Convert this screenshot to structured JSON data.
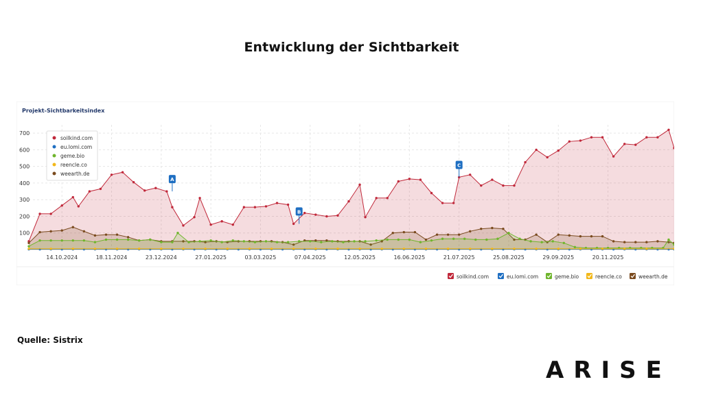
{
  "slide": {
    "title": "Entwicklung der Sichtbarkeit",
    "source": "Quelle: Sistrix",
    "logo": "ARISE"
  },
  "colors": {
    "soilkind": "#c0283a",
    "eulomi": "#1f6fc2",
    "geme": "#6fb52c",
    "reencle": "#f2b81a",
    "weearth": "#7a4a1e"
  },
  "chart_data": {
    "type": "area",
    "title": "Projekt-Sichtbarkeitsindex",
    "xlabel": "",
    "ylabel": "",
    "ylim": [
      0,
      750
    ],
    "yticks": [
      100,
      200,
      300,
      400,
      500,
      600,
      700
    ],
    "ytick_labels": [
      "100",
      "200",
      "300",
      "400",
      "500",
      "600",
      "700"
    ],
    "xticks": [
      6,
      15,
      24,
      33,
      42,
      51,
      60,
      69,
      78,
      87,
      96,
      105
    ],
    "xtick_labels": [
      "14.10.2024",
      "18.11.2024",
      "23.12.2024",
      "27.01.2025",
      "03.03.2025",
      "07.04.2025",
      "12.05.2025",
      "16.06.2025",
      "21.07.2025",
      "25.08.2025",
      "29.09.2025",
      "20.11.2025"
    ],
    "x_count": 112,
    "legend_inset_position": "top-left",
    "legend_bottom_position": "bottom-right",
    "series": [
      {
        "name": "soilkind.com",
        "color_key": "soilkind",
        "points": [
          [
            0,
            50
          ],
          [
            2,
            215
          ],
          [
            4,
            215
          ],
          [
            6,
            265
          ],
          [
            8,
            315
          ],
          [
            9,
            260
          ],
          [
            11,
            350
          ],
          [
            13,
            365
          ],
          [
            15,
            450
          ],
          [
            17,
            465
          ],
          [
            19,
            405
          ],
          [
            21,
            355
          ],
          [
            23,
            370
          ],
          [
            25,
            350
          ],
          [
            26,
            255
          ],
          [
            28,
            145
          ],
          [
            30,
            195
          ],
          [
            31,
            310
          ],
          [
            33,
            150
          ],
          [
            35,
            170
          ],
          [
            37,
            150
          ],
          [
            39,
            255
          ],
          [
            41,
            255
          ],
          [
            43,
            260
          ],
          [
            45,
            280
          ],
          [
            47,
            270
          ],
          [
            48,
            155
          ],
          [
            50,
            220
          ],
          [
            52,
            210
          ],
          [
            54,
            200
          ],
          [
            56,
            205
          ],
          [
            58,
            290
          ],
          [
            60,
            390
          ],
          [
            61,
            195
          ],
          [
            63,
            310
          ],
          [
            65,
            310
          ],
          [
            67,
            410
          ],
          [
            69,
            425
          ],
          [
            71,
            420
          ],
          [
            73,
            340
          ],
          [
            75,
            280
          ],
          [
            77,
            280
          ],
          [
            78,
            435
          ],
          [
            80,
            450
          ],
          [
            82,
            385
          ],
          [
            84,
            420
          ],
          [
            86,
            385
          ],
          [
            88,
            385
          ],
          [
            90,
            525
          ],
          [
            92,
            600
          ],
          [
            94,
            555
          ],
          [
            96,
            595
          ],
          [
            98,
            650
          ],
          [
            100,
            655
          ],
          [
            102,
            675
          ],
          [
            104,
            675
          ],
          [
            106,
            560
          ],
          [
            108,
            635
          ],
          [
            110,
            630
          ],
          [
            112,
            675
          ],
          [
            114,
            675
          ],
          [
            116,
            720
          ],
          [
            117,
            610
          ]
        ]
      },
      {
        "name": "eu.lomi.com",
        "color_key": "eulomi",
        "points": [
          [
            0,
            2
          ],
          [
            2,
            2
          ],
          [
            4,
            2
          ],
          [
            6,
            2
          ],
          [
            8,
            2
          ],
          [
            10,
            2
          ],
          [
            12,
            2
          ],
          [
            14,
            2
          ],
          [
            16,
            2
          ],
          [
            18,
            2
          ],
          [
            20,
            2
          ],
          [
            22,
            2
          ],
          [
            24,
            2
          ],
          [
            26,
            2
          ],
          [
            28,
            2
          ],
          [
            30,
            2
          ],
          [
            32,
            2
          ],
          [
            34,
            2
          ],
          [
            36,
            2
          ],
          [
            38,
            2
          ],
          [
            40,
            2
          ],
          [
            42,
            2
          ],
          [
            44,
            2
          ],
          [
            46,
            2
          ],
          [
            48,
            2
          ],
          [
            50,
            2
          ],
          [
            52,
            2
          ],
          [
            54,
            2
          ],
          [
            56,
            2
          ],
          [
            58,
            2
          ],
          [
            60,
            2
          ],
          [
            62,
            2
          ],
          [
            64,
            2
          ],
          [
            66,
            2
          ],
          [
            68,
            2
          ],
          [
            70,
            2
          ],
          [
            72,
            2
          ],
          [
            74,
            2
          ],
          [
            76,
            2
          ],
          [
            78,
            2
          ],
          [
            80,
            2
          ],
          [
            82,
            2
          ],
          [
            84,
            2
          ],
          [
            86,
            2
          ],
          [
            88,
            2
          ],
          [
            90,
            2
          ],
          [
            92,
            2
          ],
          [
            94,
            2
          ],
          [
            96,
            2
          ],
          [
            98,
            2
          ],
          [
            100,
            2
          ],
          [
            102,
            2
          ],
          [
            104,
            2
          ],
          [
            106,
            2
          ],
          [
            108,
            2
          ],
          [
            110,
            2
          ],
          [
            112,
            2
          ],
          [
            114,
            2
          ],
          [
            116,
            2
          ],
          [
            117,
            2
          ]
        ]
      },
      {
        "name": "geme.bio",
        "color_key": "geme",
        "points": [
          [
            0,
            20
          ],
          [
            2,
            55
          ],
          [
            4,
            55
          ],
          [
            6,
            55
          ],
          [
            8,
            55
          ],
          [
            10,
            55
          ],
          [
            12,
            45
          ],
          [
            14,
            60
          ],
          [
            16,
            60
          ],
          [
            18,
            60
          ],
          [
            20,
            55
          ],
          [
            22,
            60
          ],
          [
            24,
            45
          ],
          [
            26,
            45
          ],
          [
            27,
            100
          ],
          [
            29,
            45
          ],
          [
            31,
            50
          ],
          [
            33,
            55
          ],
          [
            35,
            45
          ],
          [
            37,
            55
          ],
          [
            39,
            50
          ],
          [
            41,
            45
          ],
          [
            43,
            50
          ],
          [
            45,
            45
          ],
          [
            47,
            45
          ],
          [
            49,
            50
          ],
          [
            51,
            50
          ],
          [
            53,
            45
          ],
          [
            55,
            50
          ],
          [
            57,
            45
          ],
          [
            59,
            50
          ],
          [
            61,
            50
          ],
          [
            63,
            55
          ],
          [
            65,
            60
          ],
          [
            67,
            60
          ],
          [
            69,
            60
          ],
          [
            71,
            45
          ],
          [
            73,
            55
          ],
          [
            75,
            65
          ],
          [
            77,
            65
          ],
          [
            79,
            65
          ],
          [
            81,
            60
          ],
          [
            83,
            60
          ],
          [
            85,
            65
          ],
          [
            87,
            100
          ],
          [
            89,
            65
          ],
          [
            91,
            50
          ],
          [
            93,
            45
          ],
          [
            95,
            50
          ],
          [
            97,
            40
          ],
          [
            99,
            15
          ],
          [
            101,
            10
          ],
          [
            103,
            10
          ],
          [
            105,
            10
          ],
          [
            107,
            10
          ],
          [
            109,
            10
          ],
          [
            111,
            10
          ],
          [
            113,
            10
          ],
          [
            115,
            10
          ],
          [
            116,
            60
          ],
          [
            117,
            30
          ]
        ]
      },
      {
        "name": "reencle.co",
        "color_key": "reencle",
        "points": [
          [
            0,
            5
          ],
          [
            4,
            5
          ],
          [
            8,
            5
          ],
          [
            12,
            5
          ],
          [
            16,
            5
          ],
          [
            20,
            5
          ],
          [
            24,
            5
          ],
          [
            28,
            5
          ],
          [
            32,
            5
          ],
          [
            36,
            5
          ],
          [
            40,
            5
          ],
          [
            44,
            5
          ],
          [
            48,
            5
          ],
          [
            52,
            5
          ],
          [
            56,
            5
          ],
          [
            60,
            5
          ],
          [
            64,
            5
          ],
          [
            68,
            5
          ],
          [
            72,
            5
          ],
          [
            76,
            5
          ],
          [
            80,
            5
          ],
          [
            84,
            5
          ],
          [
            88,
            5
          ],
          [
            92,
            5
          ],
          [
            96,
            5
          ],
          [
            100,
            5
          ],
          [
            104,
            5
          ],
          [
            108,
            5
          ],
          [
            112,
            5
          ],
          [
            117,
            5
          ]
        ]
      },
      {
        "name": "weearth.de",
        "color_key": "weearth",
        "points": [
          [
            0,
            40
          ],
          [
            2,
            105
          ],
          [
            4,
            110
          ],
          [
            6,
            115
          ],
          [
            8,
            135
          ],
          [
            10,
            110
          ],
          [
            12,
            85
          ],
          [
            14,
            90
          ],
          [
            16,
            90
          ],
          [
            18,
            75
          ],
          [
            20,
            55
          ],
          [
            22,
            60
          ],
          [
            24,
            50
          ],
          [
            26,
            50
          ],
          [
            28,
            50
          ],
          [
            30,
            50
          ],
          [
            32,
            45
          ],
          [
            34,
            50
          ],
          [
            36,
            45
          ],
          [
            38,
            50
          ],
          [
            40,
            50
          ],
          [
            42,
            50
          ],
          [
            44,
            50
          ],
          [
            46,
            45
          ],
          [
            48,
            30
          ],
          [
            50,
            55
          ],
          [
            52,
            55
          ],
          [
            54,
            55
          ],
          [
            56,
            50
          ],
          [
            58,
            50
          ],
          [
            60,
            50
          ],
          [
            62,
            30
          ],
          [
            64,
            50
          ],
          [
            66,
            100
          ],
          [
            68,
            105
          ],
          [
            70,
            105
          ],
          [
            72,
            60
          ],
          [
            74,
            90
          ],
          [
            76,
            90
          ],
          [
            78,
            90
          ],
          [
            80,
            110
          ],
          [
            82,
            125
          ],
          [
            84,
            130
          ],
          [
            86,
            125
          ],
          [
            88,
            60
          ],
          [
            90,
            60
          ],
          [
            92,
            90
          ],
          [
            94,
            45
          ],
          [
            96,
            90
          ],
          [
            98,
            85
          ],
          [
            100,
            80
          ],
          [
            102,
            80
          ],
          [
            104,
            80
          ],
          [
            106,
            50
          ],
          [
            108,
            45
          ],
          [
            110,
            45
          ],
          [
            112,
            45
          ],
          [
            114,
            50
          ],
          [
            116,
            45
          ],
          [
            117,
            40
          ]
        ]
      }
    ],
    "annotations": [
      {
        "label": "A",
        "x": 26,
        "y": 350
      },
      {
        "label": "B",
        "x": 49,
        "y": 155
      },
      {
        "label": "C",
        "x": 78,
        "y": 435
      }
    ]
  }
}
